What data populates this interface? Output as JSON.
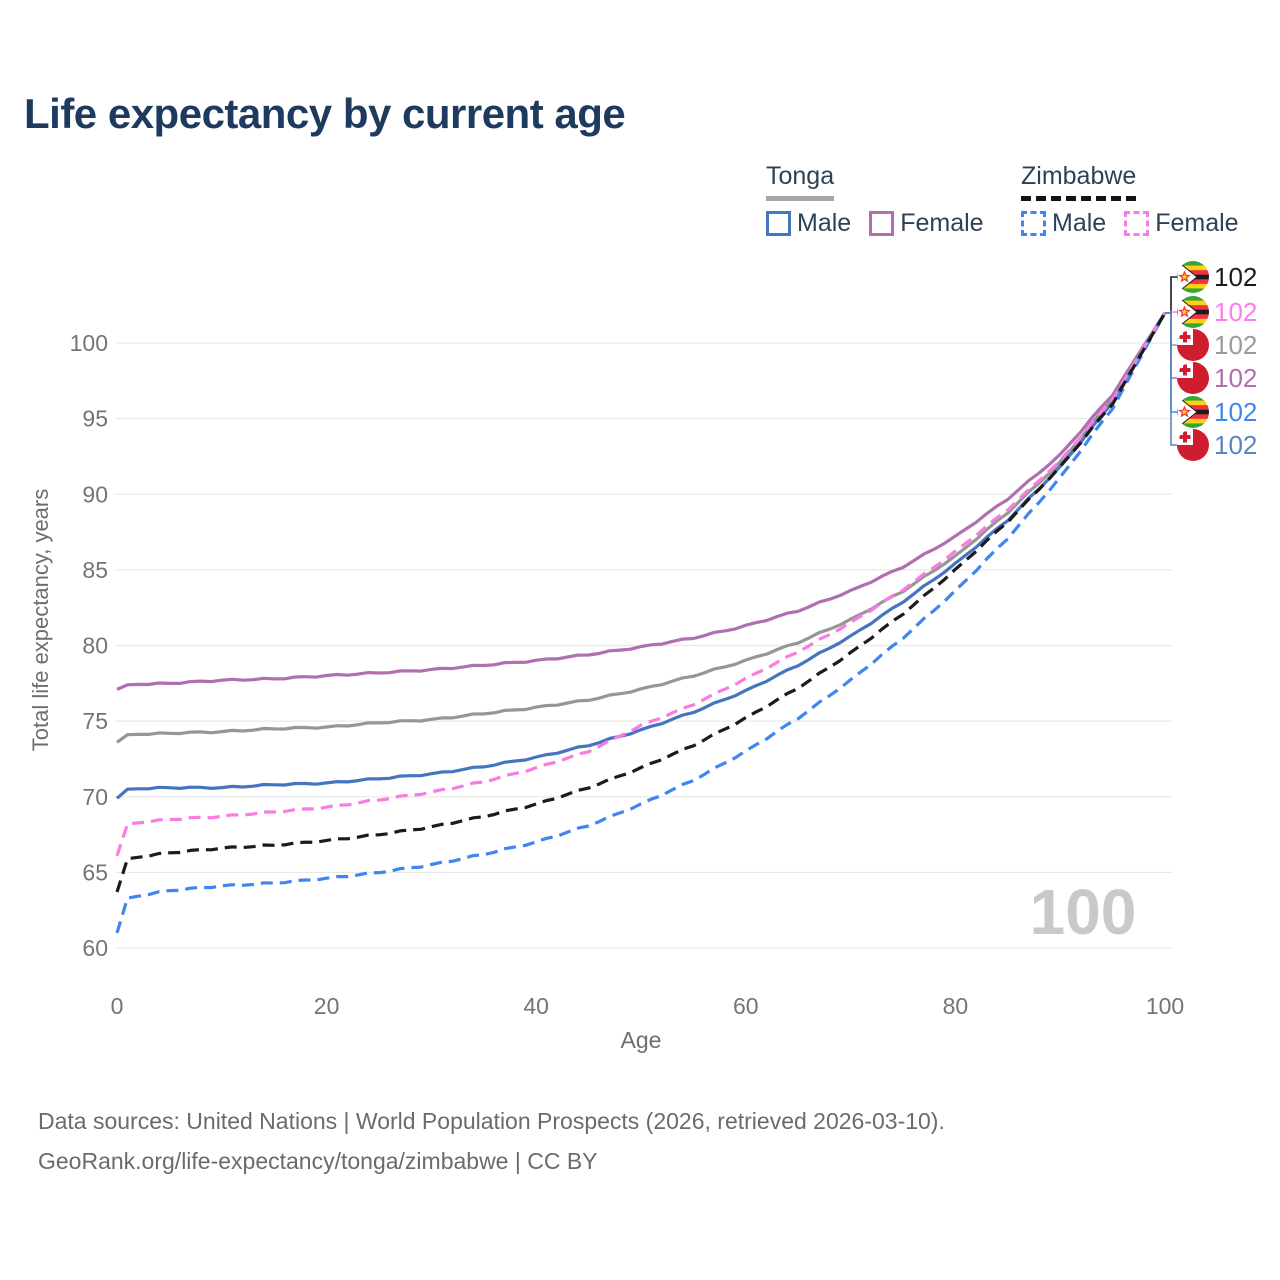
{
  "title": "Life expectancy by current age",
  "watermark_age": "100",
  "legend": {
    "groups": [
      {
        "name": "Tonga",
        "line_style": "solid",
        "underline_color": "#a6a6a6",
        "items": [
          {
            "label": "Male",
            "color": "#4675c0",
            "dashed": false
          },
          {
            "label": "Female",
            "color": "#b06fb0",
            "dashed": false
          }
        ]
      },
      {
        "name": "Zimbabwe",
        "line_style": "dashed",
        "underline_color": "#141414",
        "items": [
          {
            "label": "Male",
            "color": "#3f86f0",
            "dashed": true
          },
          {
            "label": "Female",
            "color": "#fb7ce1",
            "dashed": true
          }
        ]
      }
    ]
  },
  "axes": {
    "x": {
      "title": "Age",
      "ticks": [
        0,
        20,
        40,
        60,
        80,
        100
      ]
    },
    "y": {
      "title": "Total life expectancy, years",
      "ticks": [
        60,
        65,
        70,
        75,
        80,
        85,
        90,
        95,
        100
      ]
    }
  },
  "colors": {
    "title_text": "#1e3a5f",
    "tick_text": "#747474",
    "axis_title_text": "#6e6e6e",
    "grid": "#e9e9e9",
    "watermark": "#c9c9c9",
    "footer_text": "#6b6b6b"
  },
  "chart_data": {
    "type": "line",
    "title": "Life expectancy by current age",
    "xlabel": "Age",
    "ylabel": "Total life expectancy, years",
    "xlim": [
      0,
      100
    ],
    "ylim": [
      60,
      102
    ],
    "grid": "horizontal",
    "legend_position": "top-right",
    "x": [
      0,
      1,
      5,
      10,
      15,
      20,
      25,
      30,
      35,
      40,
      45,
      50,
      55,
      60,
      65,
      70,
      75,
      80,
      85,
      90,
      95,
      100
    ],
    "series": [
      {
        "name": "Tonga Female",
        "country": "Tonga",
        "sex": "Female",
        "color": "#b06fb0",
        "dashed": false,
        "values": [
          77.1,
          77.4,
          77.5,
          77.7,
          77.8,
          78.0,
          78.2,
          78.4,
          78.7,
          79.0,
          79.4,
          79.9,
          80.5,
          81.3,
          82.3,
          83.6,
          85.2,
          87.2,
          89.7,
          92.6,
          96.6,
          102
        ]
      },
      {
        "name": "Tonga",
        "country": "Tonga",
        "sex": "All",
        "color": "#969696",
        "dashed": false,
        "values": [
          73.6,
          74.1,
          74.2,
          74.3,
          74.5,
          74.6,
          74.9,
          75.1,
          75.5,
          75.9,
          76.4,
          77.1,
          78.0,
          79.0,
          80.2,
          81.7,
          83.6,
          85.9,
          88.8,
          92.1,
          96.3,
          102
        ]
      },
      {
        "name": "Tonga Male",
        "country": "Tonga",
        "sex": "Male",
        "color": "#4675c0",
        "dashed": false,
        "values": [
          69.9,
          70.5,
          70.6,
          70.6,
          70.8,
          70.9,
          71.2,
          71.5,
          72.0,
          72.6,
          73.4,
          74.4,
          75.6,
          77.0,
          78.7,
          80.6,
          82.9,
          85.4,
          88.3,
          91.8,
          96.1,
          102
        ]
      },
      {
        "name": "Zimbabwe Male",
        "country": "Zimbabwe",
        "sex": "Male",
        "color": "#3f86f0",
        "dashed": true,
        "values": [
          61.0,
          63.3,
          63.8,
          64.1,
          64.3,
          64.6,
          65.0,
          65.5,
          66.2,
          67.0,
          68.1,
          69.5,
          71.1,
          73.0,
          75.2,
          77.7,
          80.5,
          83.6,
          87.1,
          91.1,
          95.7,
          102
        ]
      },
      {
        "name": "Zimbabwe Female",
        "country": "Zimbabwe",
        "sex": "Female",
        "color": "#fb7ce1",
        "dashed": true,
        "values": [
          66.1,
          68.2,
          68.5,
          68.7,
          69.0,
          69.3,
          69.8,
          70.3,
          71.0,
          71.9,
          73.0,
          74.7,
          76.1,
          77.8,
          79.6,
          81.5,
          83.7,
          86.2,
          89.0,
          92.2,
          96.3,
          102
        ]
      },
      {
        "name": "Zimbabwe",
        "country": "Zimbabwe",
        "sex": "All",
        "color": "#1b1b1b",
        "dashed": true,
        "values": [
          63.7,
          65.9,
          66.3,
          66.6,
          66.8,
          67.1,
          67.5,
          68.0,
          68.7,
          69.5,
          70.6,
          71.9,
          73.4,
          75.2,
          77.2,
          79.5,
          82.1,
          85.0,
          88.2,
          91.8,
          96.0,
          102
        ]
      }
    ],
    "end_labels": [
      {
        "flag": "zimbabwe",
        "value": "102",
        "color": "#1b1b1b"
      },
      {
        "flag": "zimbabwe",
        "value": "102",
        "color": "#ff7bee"
      },
      {
        "flag": "tonga",
        "value": "102",
        "color": "#9b9b9b"
      },
      {
        "flag": "tonga",
        "value": "102",
        "color": "#b06fb0"
      },
      {
        "flag": "zimbabwe",
        "value": "102",
        "color": "#3f86f0"
      },
      {
        "flag": "tonga",
        "value": "102",
        "color": "#5b84c4"
      }
    ]
  },
  "footer": {
    "line1": "Data sources: United Nations | World Population Prospects (2026, retrieved 2026-03-10).",
    "line2": "GeoRank.org/life-expectancy/tonga/zimbabwe | CC BY"
  }
}
